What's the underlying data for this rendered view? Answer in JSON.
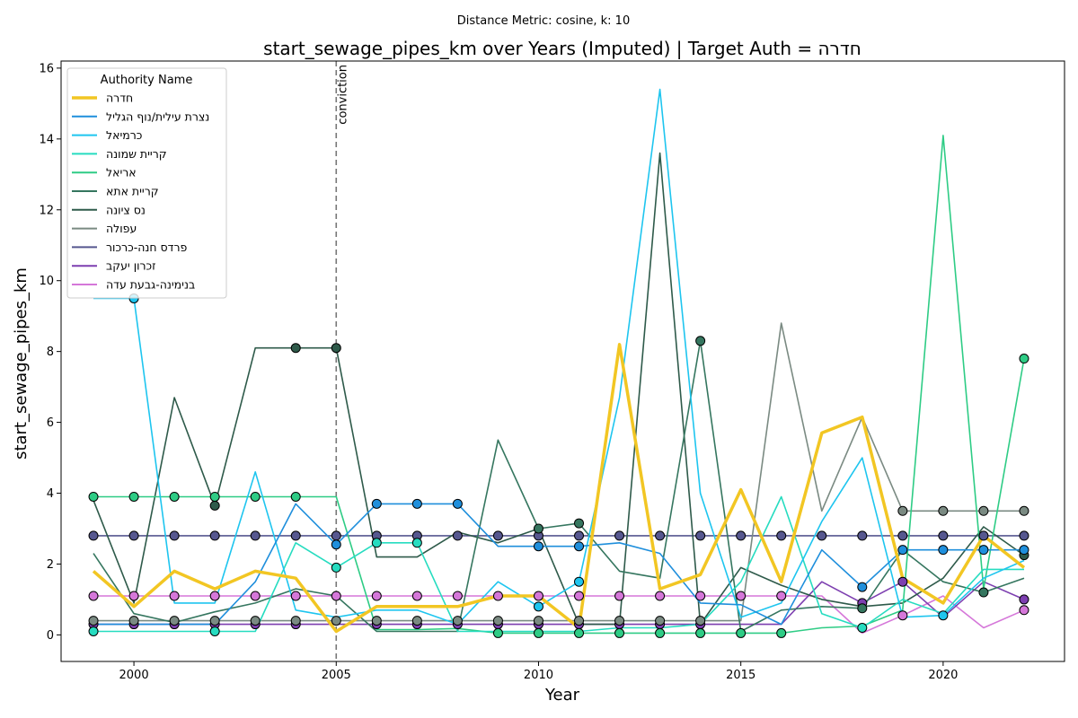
{
  "chart_data": {
    "type": "line",
    "suptitle": "Distance Metric: cosine, k: 10",
    "title": "start_sewage_pipes_km over Years (Imputed) | Target Auth = חדרה",
    "xlabel": "Year",
    "ylabel": "start_sewage_pipes_km",
    "xlim": [
      1998.2,
      2023.0
    ],
    "ylim": [
      -0.75,
      16.2
    ],
    "xticks": [
      2000,
      2005,
      2010,
      2015,
      2020
    ],
    "yticks": [
      0,
      2,
      4,
      6,
      8,
      10,
      12,
      14,
      16
    ],
    "grid": false,
    "legend_title": "Authority Name",
    "legend_position": "upper-left",
    "annotation": {
      "x": 2005,
      "label": "conviction"
    },
    "x": [
      1999,
      2000,
      2001,
      2002,
      2003,
      2004,
      2005,
      2006,
      2007,
      2008,
      2009,
      2010,
      2011,
      2012,
      2013,
      2014,
      2015,
      2016,
      2017,
      2018,
      2019,
      2020,
      2021,
      2022
    ],
    "series": [
      {
        "name": "חדרה",
        "color": "#f2c623",
        "width": 3.5,
        "markers": [],
        "values": [
          1.8,
          0.8,
          1.8,
          1.3,
          1.8,
          1.6,
          0.1,
          0.8,
          0.8,
          0.8,
          1.1,
          1.1,
          0.2,
          8.2,
          1.3,
          1.7,
          4.1,
          1.5,
          5.7,
          6.15,
          1.6,
          0.9,
          2.8,
          1.9
        ]
      },
      {
        "name": "נצרת עילית/נוף הגליל",
        "color": "#1f8fdc",
        "width": 1.6,
        "markers": [
          2005,
          2006,
          2007,
          2008,
          2010,
          2011,
          2018,
          2019,
          2020,
          2021,
          2022
        ],
        "values": [
          0.3,
          0.3,
          0.3,
          0.3,
          1.5,
          3.7,
          2.55,
          3.7,
          3.7,
          3.7,
          2.5,
          2.5,
          2.5,
          2.6,
          2.3,
          0.9,
          0.85,
          0.3,
          2.4,
          1.35,
          2.4,
          2.4,
          2.4,
          2.4
        ]
      },
      {
        "name": "כרמיאל",
        "color": "#1ec5ef",
        "width": 1.6,
        "markers": [
          2000,
          2010,
          2011,
          2020
        ],
        "values": [
          9.5,
          9.5,
          0.9,
          0.9,
          4.6,
          0.7,
          0.5,
          0.7,
          0.7,
          0.3,
          1.5,
          0.8,
          1.5,
          6.7,
          15.4,
          4.0,
          0.5,
          0.9,
          3.2,
          5.0,
          0.5,
          0.55,
          1.6,
          2.1
        ]
      },
      {
        "name": "קריית שמונה",
        "color": "#26dcc0",
        "width": 1.6,
        "markers": [
          1999,
          2002,
          2005,
          2006,
          2007,
          2018
        ],
        "values": [
          0.1,
          0.1,
          0.1,
          0.1,
          0.1,
          2.6,
          1.9,
          2.6,
          2.6,
          0.1,
          0.1,
          0.1,
          0.1,
          0.2,
          0.2,
          0.3,
          1.5,
          3.9,
          0.6,
          0.2,
          1.0,
          0.6,
          1.85,
          1.85
        ]
      },
      {
        "name": "אריאל",
        "color": "#2ecc85",
        "width": 1.6,
        "markers": [
          1999,
          2000,
          2001,
          2002,
          2003,
          2004,
          2009,
          2010,
          2011,
          2012,
          2013,
          2014,
          2015,
          2016,
          2022
        ],
        "values": [
          3.9,
          3.9,
          3.9,
          3.9,
          3.9,
          3.9,
          3.9,
          0.15,
          0.15,
          0.18,
          0.05,
          0.05,
          0.05,
          0.05,
          0.05,
          0.05,
          0.05,
          0.05,
          0.2,
          0.25,
          0.7,
          14.1,
          1.3,
          7.8
        ]
      },
      {
        "name": "קריית אתא",
        "color": "#35765f",
        "width": 1.6,
        "markers": [
          2010,
          2011,
          2014,
          2018,
          2021
        ],
        "values": [
          2.3,
          0.6,
          0.35,
          0.65,
          0.9,
          1.3,
          1.1,
          0.1,
          0.1,
          0.1,
          5.5,
          3.0,
          3.15,
          1.8,
          1.6,
          8.3,
          0.1,
          0.7,
          0.8,
          0.75,
          2.4,
          1.5,
          1.2,
          1.6
        ]
      },
      {
        "name": "נס ציונה",
        "color": "#2e5a4a",
        "width": 1.6,
        "markers": [
          2002,
          2004,
          2005,
          2022
        ],
        "values": [
          3.8,
          0.9,
          6.7,
          3.65,
          8.1,
          8.1,
          8.1,
          2.2,
          2.2,
          2.9,
          2.6,
          3.0,
          0.3,
          0.3,
          13.6,
          0.3,
          1.9,
          1.4,
          1.0,
          0.8,
          0.9,
          1.6,
          3.05,
          2.25
        ]
      },
      {
        "name": "עפולה",
        "color": "#7a8a82",
        "width": 1.6,
        "markers": [
          1999,
          2000,
          2001,
          2002,
          2003,
          2004,
          2005,
          2006,
          2007,
          2008,
          2009,
          2010,
          2011,
          2012,
          2013,
          2014,
          2019,
          2020,
          2021,
          2022
        ],
        "values": [
          0.4,
          0.4,
          0.4,
          0.4,
          0.4,
          0.4,
          0.4,
          0.4,
          0.4,
          0.4,
          0.4,
          0.4,
          0.4,
          0.4,
          0.4,
          0.4,
          0.4,
          8.8,
          3.5,
          6.15,
          3.5,
          3.5,
          3.5,
          3.5
        ]
      },
      {
        "name": "פרדס חנה-כרכור",
        "color": "#56578f",
        "width": 1.6,
        "markers": [
          1999,
          2000,
          2001,
          2002,
          2003,
          2004,
          2005,
          2006,
          2007,
          2008,
          2009,
          2010,
          2011,
          2012,
          2013,
          2014,
          2015,
          2016,
          2017,
          2018,
          2019,
          2020,
          2021,
          2022
        ],
        "values": [
          2.8,
          2.8,
          2.8,
          2.8,
          2.8,
          2.8,
          2.8,
          2.8,
          2.8,
          2.8,
          2.8,
          2.8,
          2.8,
          2.8,
          2.8,
          2.8,
          2.8,
          2.8,
          2.8,
          2.8,
          2.8,
          2.8,
          2.8,
          2.8
        ]
      },
      {
        "name": "זכרון יעקב",
        "color": "#7d3fb0",
        "width": 1.6,
        "markers": [
          1999,
          2000,
          2001,
          2002,
          2003,
          2004,
          2006,
          2007,
          2008,
          2009,
          2010,
          2011,
          2012,
          2013,
          2014,
          2018,
          2019,
          2022
        ],
        "values": [
          0.3,
          0.3,
          0.3,
          0.3,
          0.3,
          0.3,
          0.3,
          0.3,
          0.3,
          0.3,
          0.3,
          0.3,
          0.3,
          0.3,
          0.3,
          0.3,
          0.3,
          0.3,
          1.5,
          0.9,
          1.5,
          0.5,
          1.5,
          1.0
        ]
      },
      {
        "name": "בנימינה-גבעת עדה",
        "color": "#d577d9",
        "width": 1.6,
        "markers": [
          1999,
          2000,
          2001,
          2002,
          2003,
          2004,
          2005,
          2006,
          2007,
          2008,
          2009,
          2010,
          2011,
          2012,
          2013,
          2014,
          2015,
          2016,
          2019,
          2022
        ],
        "values": [
          1.1,
          1.1,
          1.1,
          1.1,
          1.1,
          1.1,
          1.1,
          1.1,
          1.1,
          1.1,
          1.1,
          1.1,
          1.1,
          1.1,
          1.1,
          1.1,
          1.1,
          1.1,
          1.1,
          0.05,
          0.55,
          1.1,
          0.2,
          0.7
        ]
      }
    ]
  }
}
